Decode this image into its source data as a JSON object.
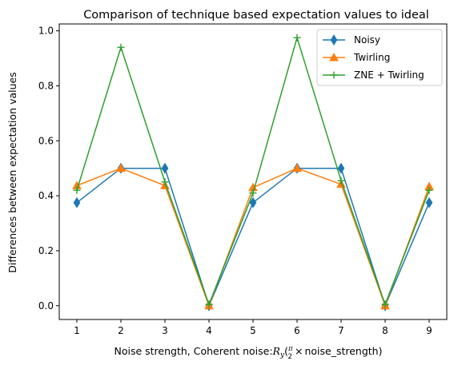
{
  "chart_data": {
    "type": "line",
    "title": "Comparison of technique based expectation values to ideal",
    "xlabel_prefix": "Noise strength, Coherent noise:",
    "xlabel_math_R": "R",
    "xlabel_math_sub": "y",
    "xlabel_math_open": "(",
    "xlabel_math_pi": "π",
    "xlabel_math_two": "2",
    "xlabel_math_times": "×",
    "xlabel_math_rest": "noise_strength)",
    "ylabel": "Differences between expectation values",
    "x": [
      1,
      2,
      3,
      4,
      5,
      6,
      7,
      8,
      9
    ],
    "xlim": [
      0.6,
      9.4
    ],
    "ylim": [
      -0.05,
      1.025
    ],
    "yticks": [
      0.0,
      0.2,
      0.4,
      0.6,
      0.8,
      1.0
    ],
    "ytick_labels": [
      "0.0",
      "0.2",
      "0.4",
      "0.6",
      "0.8",
      "1.0"
    ],
    "xtick_labels": [
      "1",
      "2",
      "3",
      "4",
      "5",
      "6",
      "7",
      "8",
      "9"
    ],
    "grid": false,
    "legend_position": "top-right",
    "series": [
      {
        "name": "Noisy",
        "color": "#1f77b4",
        "marker": "diamond",
        "values": [
          0.375,
          0.5,
          0.5,
          0.0,
          0.375,
          0.5,
          0.5,
          0.0,
          0.375
        ]
      },
      {
        "name": "Twirling",
        "color": "#ff7f0e",
        "marker": "triangle",
        "values": [
          0.437,
          0.5,
          0.437,
          0.0,
          0.43,
          0.5,
          0.442,
          0.0,
          0.434
        ]
      },
      {
        "name": "ZNE + Twirling",
        "color": "#2ca02c",
        "marker": "plus",
        "values": [
          0.42,
          0.94,
          0.45,
          0.005,
          0.41,
          0.975,
          0.455,
          0.005,
          0.42
        ]
      }
    ]
  }
}
